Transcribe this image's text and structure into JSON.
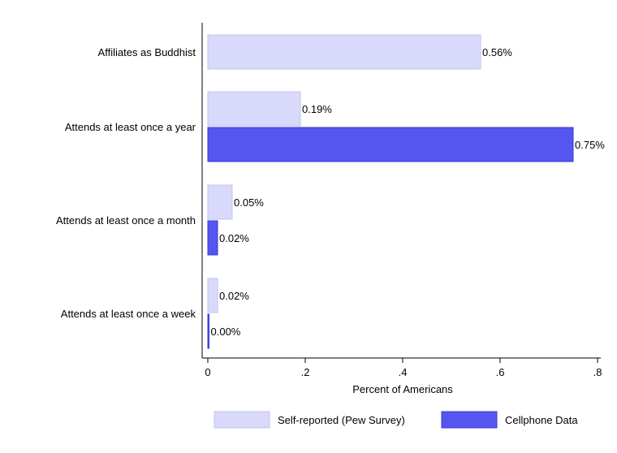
{
  "chart_data": {
    "type": "bar",
    "orientation": "horizontal",
    "categories": [
      "Affiliates as Buddhist",
      "Attends at least once a year",
      "Attends at least once a month",
      "Attends at least once a week"
    ],
    "series": [
      {
        "name": "Self-reported (Pew Survey)",
        "color": "#d9d9fb",
        "values": [
          0.56,
          0.19,
          0.05,
          0.02
        ],
        "labels": [
          "0.56%",
          "0.19%",
          "0.05%",
          "0.02%"
        ]
      },
      {
        "name": "Cellphone Data",
        "color": "#5555f0",
        "values": [
          null,
          0.75,
          0.02,
          0.0
        ],
        "labels": [
          "",
          "0.75%",
          "0.02%",
          "0.00%"
        ]
      }
    ],
    "xlabel": "Percent of Americans",
    "xlim": [
      0,
      0.8
    ],
    "xticks": [
      0,
      0.2,
      0.4,
      0.6,
      0.8
    ],
    "xtick_labels": [
      "0",
      ".2",
      ".4",
      ".6",
      ".8"
    ],
    "grid": false,
    "legend_position": "bottom"
  }
}
